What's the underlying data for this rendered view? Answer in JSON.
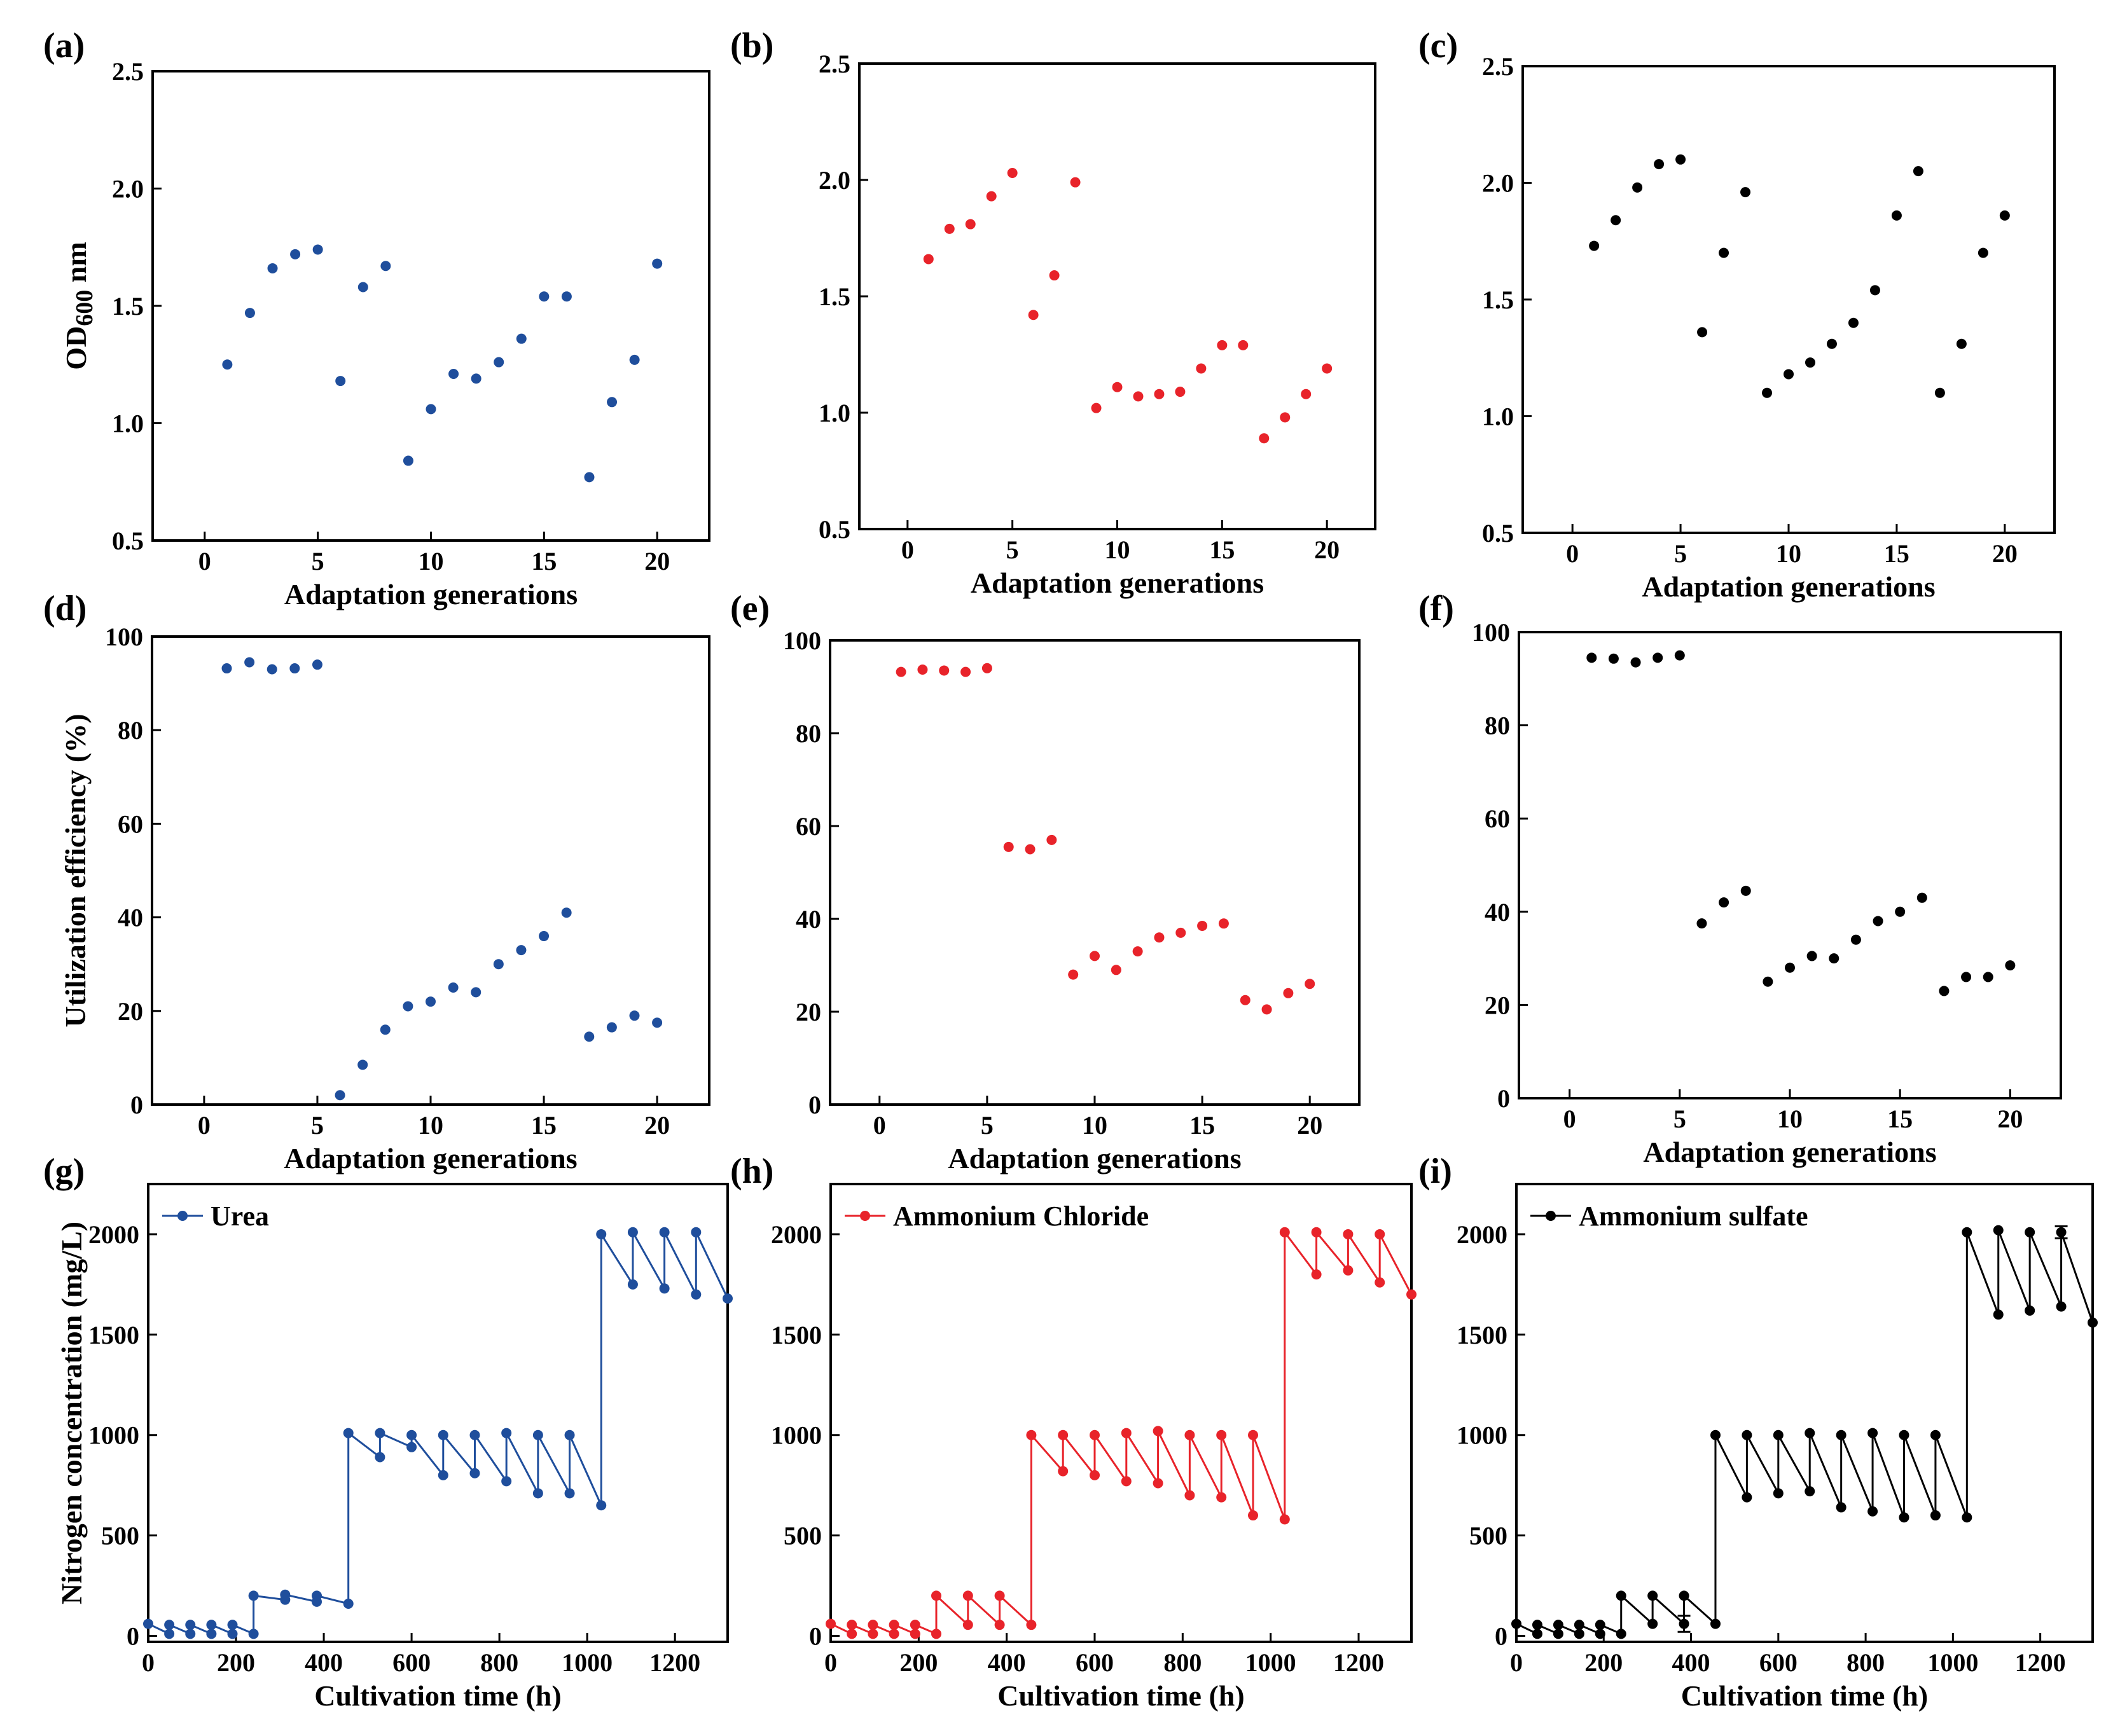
{
  "figure": {
    "colors": {
      "urea": "#1f4e9c",
      "ammonium_chloride": "#e8232a",
      "ammonium_sulfate": "#000000",
      "axis": "#000000"
    }
  },
  "chart_data": [
    {
      "panel": "(a)",
      "type": "scatter",
      "color": "#1f4e9c",
      "xlabel": "Adaptation generations",
      "ylabel": "OD600 nm",
      "xlim": [
        -2.3,
        22.3
      ],
      "ylim": [
        0.5,
        2.5
      ],
      "xticks": [
        0,
        5,
        10,
        15,
        20
      ],
      "yticks": [
        0.5,
        1.0,
        1.5,
        2.0,
        2.5
      ],
      "ytick_labels": [
        "0.5",
        "1.0",
        "1.5",
        "2.0",
        "2.5"
      ],
      "x": [
        1,
        2,
        3,
        4,
        5,
        6,
        7,
        8,
        9,
        10,
        11,
        12,
        13,
        14,
        15,
        16,
        17,
        18,
        19,
        20
      ],
      "y": [
        1.25,
        1.47,
        1.66,
        1.72,
        1.74,
        1.18,
        1.58,
        1.67,
        0.84,
        1.06,
        1.21,
        1.19,
        1.26,
        1.36,
        1.54,
        1.54,
        0.77,
        1.09,
        1.27,
        1.68
      ]
    },
    {
      "panel": "(b)",
      "type": "scatter",
      "color": "#e8232a",
      "xlabel": "Adaptation generations",
      "ylabel": "",
      "xlim": [
        -2.3,
        22.3
      ],
      "ylim": [
        0.5,
        2.5
      ],
      "xticks": [
        0,
        5,
        10,
        15,
        20
      ],
      "yticks": [
        0.5,
        1.0,
        1.5,
        2.0,
        2.5
      ],
      "ytick_labels": [
        "0.5",
        "1.0",
        "1.5",
        "2.0",
        "2.5"
      ],
      "x": [
        1,
        2,
        3,
        4,
        5,
        6,
        7,
        8,
        9,
        10,
        11,
        12,
        13,
        14,
        15,
        16,
        17,
        18,
        19,
        20
      ],
      "y": [
        1.66,
        1.79,
        1.81,
        1.93,
        2.03,
        1.42,
        1.59,
        1.99,
        1.02,
        1.11,
        1.07,
        1.08,
        1.09,
        1.19,
        1.29,
        1.29,
        0.89,
        0.98,
        1.08,
        1.19
      ]
    },
    {
      "panel": "(c)",
      "type": "scatter",
      "color": "#000000",
      "xlabel": "Adaptation generations",
      "ylabel": "",
      "xlim": [
        -2.3,
        22.3
      ],
      "ylim": [
        0.5,
        2.5
      ],
      "xticks": [
        0,
        5,
        10,
        15,
        20
      ],
      "yticks": [
        0.5,
        1.0,
        1.5,
        2.0,
        2.5
      ],
      "ytick_labels": [
        "0.5",
        "1.0",
        "1.5",
        "2.0",
        "2.5"
      ],
      "x": [
        1,
        2,
        3,
        4,
        5,
        6,
        7,
        8,
        9,
        10,
        11,
        12,
        13,
        14,
        15,
        16,
        17,
        18,
        19,
        20
      ],
      "y": [
        1.73,
        1.84,
        1.98,
        2.08,
        2.1,
        1.36,
        1.7,
        1.96,
        1.1,
        1.18,
        1.23,
        1.31,
        1.4,
        1.54,
        1.86,
        2.05,
        1.1,
        1.31,
        1.7,
        1.86
      ]
    },
    {
      "panel": "(d)",
      "type": "scatter",
      "color": "#1f4e9c",
      "xlabel": "Adaptation generations",
      "ylabel": "Utilization efficiency (%)",
      "xlim": [
        -2.3,
        22.3
      ],
      "ylim": [
        0,
        100
      ],
      "xticks": [
        0,
        5,
        10,
        15,
        20
      ],
      "yticks": [
        0,
        20,
        40,
        60,
        80,
        100
      ],
      "ytick_labels": [
        "0",
        "20",
        "40",
        "60",
        "80",
        "100"
      ],
      "x": [
        1,
        2,
        3,
        4,
        5,
        6,
        7,
        8,
        9,
        10,
        11,
        12,
        13,
        14,
        15,
        16,
        17,
        18,
        19,
        20
      ],
      "y": [
        93.2,
        94.5,
        93.0,
        93.2,
        94.0,
        2.0,
        8.5,
        16.0,
        21.0,
        22.0,
        25.0,
        24.0,
        30.0,
        33.0,
        36.0,
        41.0,
        14.5,
        16.5,
        19.0,
        17.5
      ]
    },
    {
      "panel": "(e)",
      "type": "scatter",
      "color": "#e8232a",
      "xlabel": "Adaptation generations",
      "ylabel": "",
      "xlim": [
        -2.3,
        22.3
      ],
      "ylim": [
        0,
        100
      ],
      "xticks": [
        0,
        5,
        10,
        15,
        20
      ],
      "yticks": [
        0,
        20,
        40,
        60,
        80,
        100
      ],
      "ytick_labels": [
        "0",
        "20",
        "40",
        "60",
        "80",
        "100"
      ],
      "x": [
        1,
        2,
        3,
        4,
        5,
        6,
        7,
        8,
        9,
        10,
        11,
        12,
        13,
        14,
        15,
        16,
        17,
        18,
        19,
        20
      ],
      "y": [
        93.2,
        93.7,
        93.5,
        93.2,
        94.0,
        55.5,
        55.0,
        57.0,
        28.0,
        32.0,
        29.0,
        33.0,
        36.0,
        37.0,
        38.5,
        39.0,
        22.5,
        20.5,
        24.0,
        26.0
      ]
    },
    {
      "panel": "(f)",
      "type": "scatter",
      "color": "#000000",
      "xlabel": "Adaptation generations",
      "ylabel": "",
      "xlim": [
        -2.3,
        22.3
      ],
      "ylim": [
        0,
        100
      ],
      "xticks": [
        0,
        5,
        10,
        15,
        20
      ],
      "yticks": [
        0,
        20,
        40,
        60,
        80,
        100
      ],
      "ytick_labels": [
        "0",
        "20",
        "40",
        "60",
        "80",
        "100"
      ],
      "x": [
        1,
        2,
        3,
        4,
        5,
        6,
        7,
        8,
        9,
        10,
        11,
        12,
        13,
        14,
        15,
        16,
        17,
        18,
        19,
        20
      ],
      "y": [
        94.5,
        94.3,
        93.5,
        94.5,
        95.0,
        37.5,
        42.0,
        44.5,
        25.0,
        28.0,
        30.5,
        30.0,
        34.0,
        38.0,
        40.0,
        43.0,
        23.0,
        26.0,
        26.0,
        28.5
      ]
    },
    {
      "panel": "(g)",
      "type": "line",
      "color": "#1f4e9c",
      "xlabel": "Cultivation time (h)",
      "ylabel": "Nitrogen concentration (mg/L)",
      "legend": "Urea",
      "xlim": [
        0,
        1320
      ],
      "ylim": [
        -30,
        2250
      ],
      "xticks": [
        0,
        200,
        400,
        600,
        800,
        1000,
        1200
      ],
      "yticks": [
        0,
        500,
        1000,
        1500,
        2000
      ],
      "ytick_labels": [
        "0",
        "500",
        "1000",
        "1500",
        "2000"
      ],
      "x": [
        0,
        48,
        48,
        96,
        96,
        144,
        144,
        192,
        192,
        240,
        240,
        312,
        312,
        384,
        384,
        456,
        456,
        528,
        528,
        600,
        600,
        672,
        672,
        744,
        744,
        816,
        816,
        888,
        888,
        960,
        960,
        1032,
        1032,
        1104,
        1104,
        1176,
        1176,
        1248,
        1248,
        1320
      ],
      "y": [
        60,
        10,
        55,
        10,
        55,
        10,
        55,
        10,
        55,
        10,
        200,
        180,
        205,
        170,
        200,
        160,
        1010,
        890,
        1010,
        940,
        1000,
        800,
        1000,
        810,
        1000,
        770,
        1010,
        710,
        1000,
        710,
        1000,
        650,
        2000,
        1750,
        2010,
        1730,
        2010,
        1700,
        2010,
        1680
      ],
      "error": []
    },
    {
      "panel": "(h)",
      "type": "line",
      "color": "#e8232a",
      "xlabel": "Cultivation time (h)",
      "ylabel": "",
      "legend": "Ammonium Chloride",
      "xlim": [
        0,
        1320
      ],
      "ylim": [
        -30,
        2250
      ],
      "xticks": [
        0,
        200,
        400,
        600,
        800,
        1000,
        1200
      ],
      "yticks": [
        0,
        500,
        1000,
        1500,
        2000
      ],
      "ytick_labels": [
        "0",
        "500",
        "1000",
        "1500",
        "2000"
      ],
      "x": [
        0,
        48,
        48,
        96,
        96,
        144,
        144,
        192,
        192,
        240,
        240,
        312,
        312,
        384,
        384,
        456,
        456,
        528,
        528,
        600,
        600,
        672,
        672,
        744,
        744,
        816,
        816,
        888,
        888,
        960,
        960,
        1032,
        1032,
        1104,
        1104,
        1176,
        1176,
        1248,
        1248,
        1320
      ],
      "y": [
        60,
        10,
        55,
        10,
        55,
        10,
        55,
        10,
        55,
        10,
        200,
        55,
        200,
        55,
        200,
        55,
        1000,
        820,
        1000,
        800,
        1000,
        770,
        1010,
        760,
        1020,
        700,
        1000,
        690,
        1000,
        600,
        1000,
        580,
        2010,
        1800,
        2010,
        1820,
        2000,
        1760,
        2000,
        1700
      ],
      "error": []
    },
    {
      "panel": "(i)",
      "type": "line",
      "color": "#000000",
      "xlabel": "Cultivation time (h)",
      "ylabel": "",
      "legend": "Ammonium sulfate",
      "xlim": [
        0,
        1320
      ],
      "ylim": [
        -30,
        2250
      ],
      "xticks": [
        0,
        200,
        400,
        600,
        800,
        1000,
        1200
      ],
      "yticks": [
        0,
        500,
        1000,
        1500,
        2000
      ],
      "ytick_labels": [
        "0",
        "500",
        "1000",
        "1500",
        "2000"
      ],
      "x": [
        0,
        48,
        48,
        96,
        96,
        144,
        144,
        192,
        192,
        240,
        240,
        312,
        312,
        384,
        384,
        456,
        456,
        528,
        528,
        600,
        600,
        672,
        672,
        744,
        744,
        816,
        816,
        888,
        888,
        960,
        960,
        1032,
        1032,
        1104,
        1104,
        1176,
        1176,
        1248,
        1248,
        1320
      ],
      "y": [
        60,
        10,
        55,
        10,
        55,
        10,
        55,
        10,
        55,
        10,
        200,
        60,
        200,
        60,
        200,
        60,
        1000,
        690,
        1000,
        710,
        1000,
        720,
        1010,
        640,
        1000,
        620,
        1010,
        590,
        1000,
        600,
        1000,
        590,
        2010,
        1600,
        2020,
        1620,
        2010,
        1640,
        2010,
        1560
      ],
      "error": [
        [
          1248,
          2010,
          30
        ],
        [
          384,
          60,
          40
        ]
      ]
    }
  ]
}
